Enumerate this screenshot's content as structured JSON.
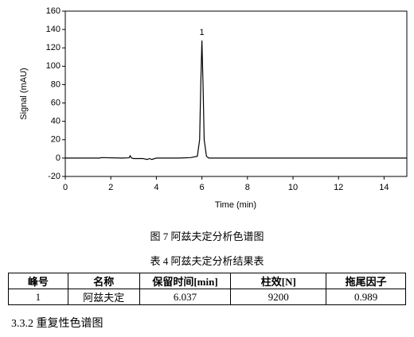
{
  "chart_data": {
    "type": "line",
    "xlabel": "Time (min)",
    "ylabel": "Signal (mAU)",
    "x": [
      0,
      1.5,
      1.6,
      2.5,
      2.8,
      2.85,
      2.9,
      3.0,
      3.4,
      3.6,
      3.7,
      3.8,
      4.0,
      5.0,
      5.5,
      5.8,
      5.9,
      5.95,
      6.0,
      6.05,
      6.1,
      6.2,
      6.3,
      7,
      10,
      15
    ],
    "values": [
      0,
      0,
      0.5,
      0,
      0.3,
      2.5,
      0.2,
      -0.5,
      -0.5,
      -1.5,
      -0.5,
      -1.5,
      0,
      0,
      0.5,
      2,
      20,
      80,
      128,
      80,
      20,
      2,
      0,
      0,
      0,
      0
    ],
    "color": "#000000",
    "xlim": [
      0,
      15
    ],
    "ylim": [
      -20,
      160
    ],
    "xticks": [
      0,
      2,
      4,
      6,
      8,
      10,
      12,
      14
    ],
    "yticks": [
      -20,
      0,
      20,
      40,
      60,
      80,
      100,
      120,
      140,
      160
    ],
    "annotations": [
      "1"
    ]
  },
  "figure_caption": "图 7  阿兹夫定分析色谱图",
  "table": {
    "caption": "表 4  阿兹夫定分析结果表",
    "header": [
      "峰号",
      "名称",
      "保留时间[min]",
      "柱效[N]",
      "拖尾因子"
    ],
    "rows": [
      [
        "1",
        "阿兹夫定",
        "6.037",
        "9200",
        "0.989"
      ]
    ]
  },
  "section_heading": "3.3.2  重复性色谱图"
}
